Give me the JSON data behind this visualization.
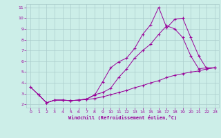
{
  "xlabel": "Windchill (Refroidissement éolien,°C)",
  "bg_color": "#cceee8",
  "line_color": "#990099",
  "grid_color": "#aacccc",
  "xlim": [
    -0.5,
    23.5
  ],
  "ylim": [
    1.7,
    11.3
  ],
  "xticks": [
    0,
    1,
    2,
    3,
    4,
    5,
    6,
    7,
    8,
    9,
    10,
    11,
    12,
    13,
    14,
    15,
    16,
    17,
    18,
    19,
    20,
    21,
    22,
    23
  ],
  "yticks": [
    2,
    3,
    4,
    5,
    6,
    7,
    8,
    9,
    10,
    11
  ],
  "line_bottom_x": [
    0,
    1,
    2,
    3,
    4,
    5,
    6,
    7,
    8,
    9,
    10,
    11,
    12,
    13,
    14,
    15,
    16,
    17,
    18,
    19,
    20,
    21,
    22,
    23
  ],
  "line_bottom_y": [
    3.6,
    2.9,
    2.15,
    2.4,
    2.4,
    2.35,
    2.4,
    2.45,
    2.55,
    2.7,
    2.9,
    3.1,
    3.3,
    3.55,
    3.75,
    4.0,
    4.2,
    4.5,
    4.7,
    4.85,
    5.0,
    5.1,
    5.3,
    5.4
  ],
  "line_mid_x": [
    0,
    1,
    2,
    3,
    4,
    5,
    6,
    7,
    8,
    9,
    10,
    11,
    12,
    13,
    14,
    15,
    16,
    17,
    18,
    19,
    20,
    21,
    22,
    23
  ],
  "line_mid_y": [
    3.6,
    2.9,
    2.15,
    2.4,
    2.4,
    2.35,
    2.4,
    2.5,
    2.9,
    3.1,
    3.5,
    4.5,
    5.3,
    6.3,
    7.0,
    7.6,
    8.5,
    9.3,
    9.0,
    8.2,
    6.5,
    5.3,
    5.4,
    5.4
  ],
  "line_top_x": [
    1,
    2,
    3,
    4,
    5,
    6,
    7,
    8,
    9,
    10,
    11,
    12,
    13,
    14,
    15,
    16,
    17,
    18,
    19,
    20,
    21,
    22,
    23
  ],
  "line_top_y": [
    2.9,
    2.15,
    2.4,
    2.4,
    2.35,
    2.4,
    2.5,
    2.85,
    4.1,
    5.4,
    5.95,
    6.3,
    7.2,
    8.5,
    9.4,
    11.0,
    9.1,
    9.9,
    10.0,
    8.2,
    6.5,
    5.3,
    5.4
  ]
}
